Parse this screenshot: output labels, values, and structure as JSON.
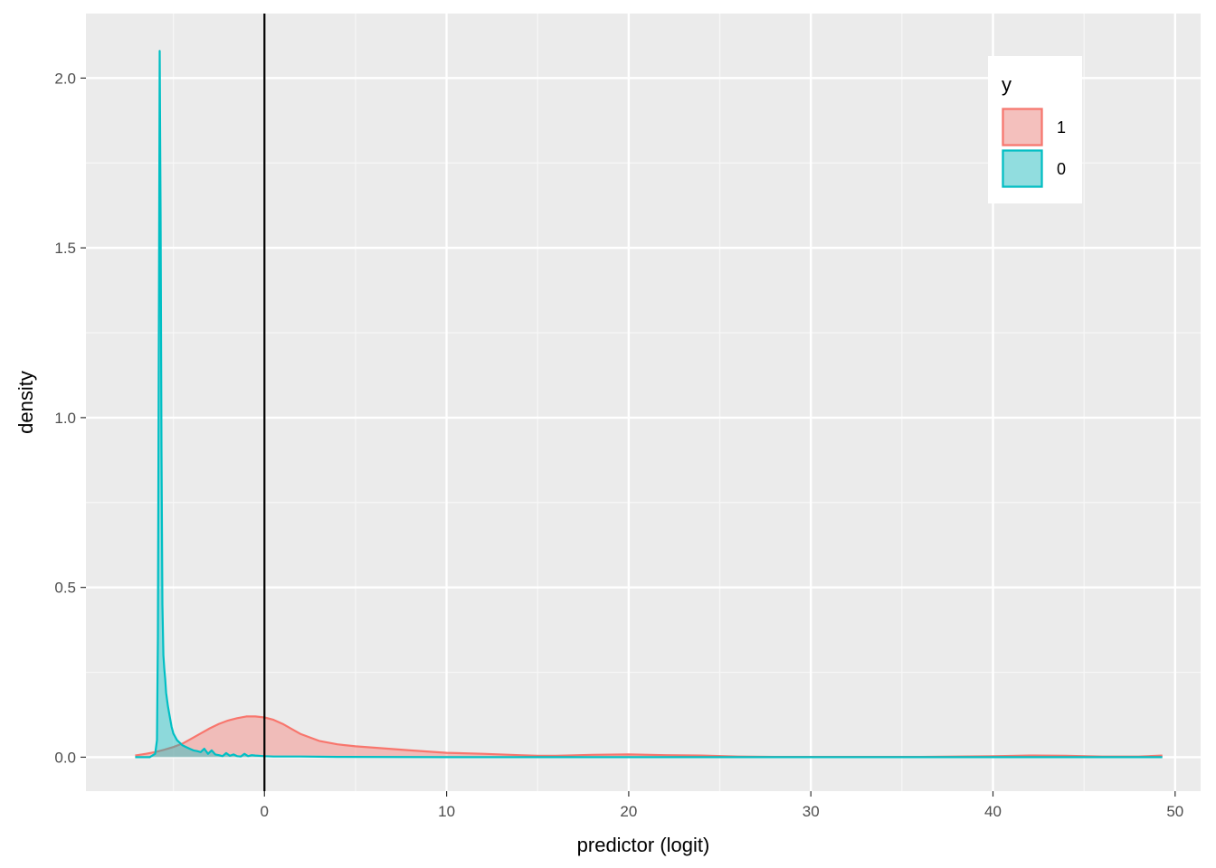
{
  "chart_data": {
    "type": "area",
    "subtype": "density",
    "title": "",
    "xlabel": "predictor (logit)",
    "ylabel": "density",
    "xlim": [
      -9.8,
      51.4
    ],
    "ylim": [
      -0.1,
      2.19
    ],
    "x_ticks": [
      0,
      10,
      20,
      30,
      40,
      50
    ],
    "x_minor_ticks": [
      -5,
      5,
      15,
      25,
      35,
      45
    ],
    "y_ticks": [
      0.0,
      0.5,
      1.0,
      1.5,
      2.0
    ],
    "y_minor_ticks": [
      0.25,
      0.75,
      1.25,
      1.75
    ],
    "x_tick_labels": [
      "0",
      "10",
      "20",
      "30",
      "40",
      "50"
    ],
    "y_tick_labels": [
      "0.0",
      "0.5",
      "1.0",
      "1.5",
      "2.0"
    ],
    "grid": true,
    "vline": {
      "x": 0,
      "color": "#000000"
    },
    "legend": {
      "title": "y",
      "position": "top-right",
      "entries": [
        {
          "label": "1",
          "fill": "#F8766D",
          "stroke": "#F8766D"
        },
        {
          "label": "0",
          "fill": "#00BFC4",
          "stroke": "#00BFC4"
        }
      ]
    },
    "series": [
      {
        "name": "1",
        "color": "#F8766D",
        "x": [
          -7.1,
          -6.5,
          -6.0,
          -5.5,
          -5.0,
          -4.5,
          -4.0,
          -3.5,
          -3.0,
          -2.5,
          -2.0,
          -1.5,
          -1.0,
          -0.5,
          0.0,
          0.5,
          1.0,
          1.5,
          2.0,
          3.0,
          4.0,
          5.0,
          6.0,
          8.0,
          10.0,
          12.0,
          14.0,
          15.0,
          16.0,
          18.0,
          20.0,
          22.0,
          24.0,
          26.0,
          28.0,
          30.0,
          32.0,
          34.0,
          36.0,
          38.0,
          40.0,
          42.0,
          44.0,
          46.0,
          48.0,
          49.3
        ],
        "y": [
          0.005,
          0.01,
          0.015,
          0.022,
          0.03,
          0.04,
          0.055,
          0.07,
          0.085,
          0.098,
          0.108,
          0.115,
          0.12,
          0.12,
          0.117,
          0.11,
          0.098,
          0.083,
          0.068,
          0.048,
          0.038,
          0.032,
          0.028,
          0.02,
          0.013,
          0.01,
          0.006,
          0.004,
          0.004,
          0.007,
          0.008,
          0.006,
          0.005,
          0.002,
          0.001,
          0.001,
          0.001,
          0.001,
          0.001,
          0.002,
          0.003,
          0.005,
          0.004,
          0.002,
          0.002,
          0.005
        ]
      },
      {
        "name": "0",
        "color": "#00BFC4",
        "x": [
          -7.1,
          -6.3,
          -6.0,
          -5.9,
          -5.85,
          -5.8,
          -5.75,
          -5.7,
          -5.65,
          -5.6,
          -5.55,
          -5.5,
          -5.45,
          -5.4,
          -5.3,
          -5.2,
          -5.1,
          -5.0,
          -4.9,
          -4.8,
          -4.7,
          -4.6,
          -4.5,
          -4.3,
          -4.1,
          -3.9,
          -3.7,
          -3.5,
          -3.3,
          -3.1,
          -2.9,
          -2.7,
          -2.5,
          -2.3,
          -2.1,
          -1.9,
          -1.7,
          -1.5,
          -1.3,
          -1.1,
          -0.9,
          -0.7,
          -0.5,
          0.0,
          0.5,
          1.0,
          2.0,
          4.0,
          10.0,
          20.0,
          30.0,
          40.0,
          49.3
        ],
        "y": [
          0.0,
          0.0,
          0.01,
          0.05,
          0.35,
          1.2,
          2.08,
          1.6,
          0.9,
          0.45,
          0.3,
          0.26,
          0.23,
          0.19,
          0.15,
          0.12,
          0.09,
          0.07,
          0.06,
          0.05,
          0.045,
          0.04,
          0.035,
          0.03,
          0.025,
          0.02,
          0.018,
          0.015,
          0.025,
          0.01,
          0.02,
          0.008,
          0.006,
          0.003,
          0.012,
          0.004,
          0.008,
          0.003,
          0.002,
          0.01,
          0.003,
          0.006,
          0.005,
          0.003,
          0.002,
          0.002,
          0.002,
          0.001,
          0.0,
          0.0,
          0.0,
          0.0,
          0.0
        ]
      }
    ]
  }
}
